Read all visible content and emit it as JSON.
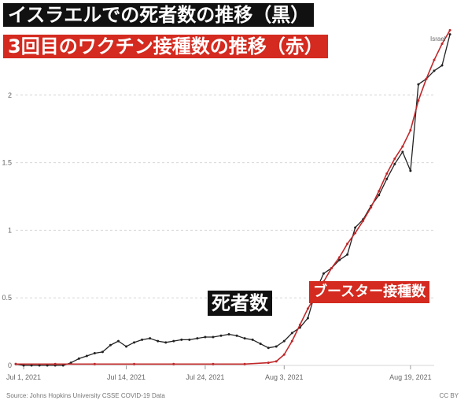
{
  "headlines": {
    "deaths_title": "イスラエルでの死者数の推移（黒）",
    "booster_title": "3回目のワクチン接種数の推移（赤）"
  },
  "annotations": {
    "deaths_label": "死者数",
    "booster_label": "ブースター接種数"
  },
  "footer": {
    "source": "Source: Johns Hopkins University CSSE COVID-19 Data",
    "license": "CC BY"
  },
  "colors": {
    "deaths_line": "#222222",
    "booster_line": "#c0282a",
    "grid": "#d6d6d6",
    "axis_text": "#666666"
  },
  "chart_data": {
    "type": "line",
    "xlabel": "",
    "ylabel": "",
    "ylim": [
      0,
      2.5
    ],
    "y_ticks": [
      0,
      0.5,
      1,
      1.5,
      2
    ],
    "y_tick_labels": [
      "0",
      "0.5",
      "1",
      "1.5",
      "2"
    ],
    "x_ticks": [
      "2021-07-01",
      "2021-07-14",
      "2021-07-24",
      "2021-08-03",
      "2021-08-19"
    ],
    "x_tick_labels": [
      "Jul 1, 2021",
      "Jul 14, 2021",
      "Jul 24, 2021",
      "Aug 3, 2021",
      "Aug 19, 2021"
    ],
    "x_range": [
      "2021-06-30",
      "2021-08-22"
    ],
    "grid": true,
    "legend": "none",
    "series": [
      {
        "name": "Israel",
        "color": "#222222",
        "points": [
          [
            "2021-06-30",
            0.01
          ],
          [
            "2021-07-01",
            0.0
          ],
          [
            "2021-07-02",
            0.0
          ],
          [
            "2021-07-03",
            0.0
          ],
          [
            "2021-07-04",
            0.0
          ],
          [
            "2021-07-05",
            0.0
          ],
          [
            "2021-07-06",
            0.0
          ],
          [
            "2021-07-07",
            0.02
          ],
          [
            "2021-07-08",
            0.05
          ],
          [
            "2021-07-09",
            0.07
          ],
          [
            "2021-07-10",
            0.09
          ],
          [
            "2021-07-11",
            0.1
          ],
          [
            "2021-07-12",
            0.15
          ],
          [
            "2021-07-13",
            0.18
          ],
          [
            "2021-07-14",
            0.14
          ],
          [
            "2021-07-15",
            0.17
          ],
          [
            "2021-07-16",
            0.19
          ],
          [
            "2021-07-17",
            0.2
          ],
          [
            "2021-07-18",
            0.18
          ],
          [
            "2021-07-19",
            0.17
          ],
          [
            "2021-07-20",
            0.18
          ],
          [
            "2021-07-21",
            0.19
          ],
          [
            "2021-07-22",
            0.19
          ],
          [
            "2021-07-23",
            0.2
          ],
          [
            "2021-07-24",
            0.21
          ],
          [
            "2021-07-25",
            0.21
          ],
          [
            "2021-07-26",
            0.22
          ],
          [
            "2021-07-27",
            0.23
          ],
          [
            "2021-07-28",
            0.22
          ],
          [
            "2021-07-29",
            0.2
          ],
          [
            "2021-07-30",
            0.19
          ],
          [
            "2021-07-31",
            0.16
          ],
          [
            "2021-08-01",
            0.13
          ],
          [
            "2021-08-02",
            0.14
          ],
          [
            "2021-08-03",
            0.18
          ],
          [
            "2021-08-04",
            0.24
          ],
          [
            "2021-08-05",
            0.28
          ],
          [
            "2021-08-06",
            0.35
          ],
          [
            "2021-08-07",
            0.55
          ],
          [
            "2021-08-08",
            0.68
          ],
          [
            "2021-08-09",
            0.72
          ],
          [
            "2021-08-10",
            0.78
          ],
          [
            "2021-08-11",
            0.82
          ],
          [
            "2021-08-12",
            1.02
          ],
          [
            "2021-08-13",
            1.08
          ],
          [
            "2021-08-14",
            1.18
          ],
          [
            "2021-08-15",
            1.26
          ],
          [
            "2021-08-16",
            1.38
          ],
          [
            "2021-08-17",
            1.49
          ],
          [
            "2021-08-18",
            1.58
          ],
          [
            "2021-08-19",
            1.44
          ],
          [
            "2021-08-20",
            2.08
          ],
          [
            "2021-08-21",
            2.12
          ],
          [
            "2021-08-22",
            2.18
          ],
          [
            "2021-08-23",
            2.22
          ],
          [
            "2021-08-24",
            2.45
          ]
        ]
      },
      {
        "color": "#c0282a",
        "points": [
          [
            "2021-06-30",
            0.01
          ],
          [
            "2021-07-05",
            0.01
          ],
          [
            "2021-07-10",
            0.01
          ],
          [
            "2021-07-15",
            0.01
          ],
          [
            "2021-07-20",
            0.01
          ],
          [
            "2021-07-25",
            0.01
          ],
          [
            "2021-07-29",
            0.01
          ],
          [
            "2021-08-01",
            0.02
          ],
          [
            "2021-08-02",
            0.03
          ],
          [
            "2021-08-03",
            0.08
          ],
          [
            "2021-08-04",
            0.18
          ],
          [
            "2021-08-05",
            0.3
          ],
          [
            "2021-08-06",
            0.42
          ],
          [
            "2021-08-07",
            0.52
          ],
          [
            "2021-08-08",
            0.62
          ],
          [
            "2021-08-09",
            0.72
          ],
          [
            "2021-08-10",
            0.8
          ],
          [
            "2021-08-11",
            0.9
          ],
          [
            "2021-08-12",
            0.98
          ],
          [
            "2021-08-13",
            1.07
          ],
          [
            "2021-08-14",
            1.17
          ],
          [
            "2021-08-15",
            1.29
          ],
          [
            "2021-08-16",
            1.42
          ],
          [
            "2021-08-17",
            1.53
          ],
          [
            "2021-08-18",
            1.62
          ],
          [
            "2021-08-19",
            1.74
          ],
          [
            "2021-08-20",
            1.96
          ],
          [
            "2021-08-21",
            2.12
          ],
          [
            "2021-08-22",
            2.26
          ],
          [
            "2021-08-23",
            2.38
          ],
          [
            "2021-08-24",
            2.48
          ]
        ]
      }
    ]
  }
}
